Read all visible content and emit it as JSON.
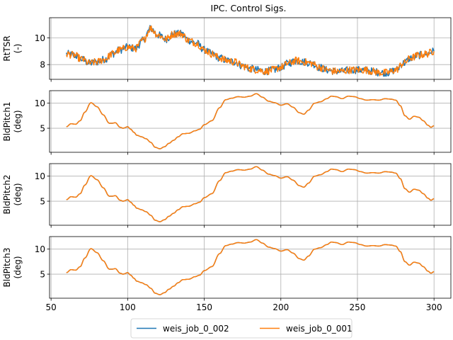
{
  "chart_data": {
    "type": "line",
    "title": "IPC. Control Sigs.",
    "legend": {
      "placement": "bottom-center",
      "entries": [
        {
          "name": "weis_job_0_002",
          "color": "#1f77b4"
        },
        {
          "name": "weis_job_0_001",
          "color": "#ff7f0e"
        }
      ]
    },
    "xlim": [
      49,
      311
    ],
    "xticks": [
      50,
      100,
      150,
      200,
      250,
      300
    ],
    "grid": true,
    "panels": [
      {
        "ylabel": [
          "RtTSR",
          "(-)"
        ],
        "ylim": [
          6.9,
          11.5
        ],
        "yticks": [
          8,
          10
        ],
        "noise": 0.28,
        "series": [
          {
            "name": "weis_job_0_002",
            "color": "#1f77b4"
          },
          {
            "name": "weis_job_0_001",
            "color": "#ff7f0e"
          }
        ],
        "x": [
          60,
          65,
          70,
          75,
          80,
          85,
          90,
          95,
          100,
          105,
          110,
          115,
          120,
          125,
          130,
          135,
          140,
          145,
          150,
          155,
          160,
          165,
          170,
          175,
          180,
          185,
          190,
          195,
          200,
          205,
          210,
          215,
          220,
          225,
          230,
          235,
          240,
          245,
          250,
          255,
          260,
          265,
          270,
          275,
          280,
          285,
          290,
          295,
          300
        ],
        "y": [
          8.8,
          8.7,
          8.4,
          8.1,
          8.2,
          8.4,
          8.8,
          9.1,
          9.3,
          9.2,
          9.8,
          10.7,
          10.2,
          9.9,
          10.3,
          10.3,
          9.8,
          9.6,
          9.1,
          8.8,
          8.5,
          8.3,
          8.2,
          7.9,
          7.7,
          7.6,
          7.5,
          7.6,
          7.8,
          8.1,
          8.3,
          8.2,
          8.1,
          7.8,
          7.6,
          7.5,
          7.5,
          7.6,
          7.6,
          7.6,
          7.5,
          7.4,
          7.4,
          7.6,
          8.1,
          8.5,
          8.7,
          8.8,
          9.0
        ]
      },
      {
        "ylabel": [
          "BldPitch1",
          "(deg)"
        ],
        "ylim": [
          0.2,
          12.5
        ],
        "yticks": [
          5,
          10
        ],
        "noise": 0,
        "series": [
          {
            "name": "weis_job_0_002",
            "color": "#1f77b4"
          },
          {
            "name": "weis_job_0_001",
            "color": "#ff7f0e"
          }
        ],
        "x": [
          60,
          63,
          66,
          69,
          72,
          76,
          80,
          84,
          88,
          90,
          92,
          95,
          97,
          100,
          102,
          104,
          106,
          109,
          112,
          115,
          118,
          121,
          124,
          127,
          130,
          133,
          136,
          140,
          144,
          147,
          150,
          155,
          160,
          164,
          168,
          172,
          176,
          180,
          184,
          188,
          192,
          196,
          200,
          204,
          208,
          212,
          215,
          218,
          222,
          226,
          230,
          233,
          236,
          240,
          244,
          248,
          252,
          256,
          260,
          264,
          268,
          272,
          275,
          278,
          281,
          284,
          287,
          290,
          293,
          296,
          298,
          300
        ],
        "y": [
          5.3,
          5.9,
          5.8,
          6.5,
          8.2,
          10.1,
          9.3,
          7.7,
          6.0,
          6.0,
          6.1,
          5.2,
          5.0,
          5.3,
          4.8,
          4.2,
          3.6,
          3.3,
          2.9,
          2.2,
          1.2,
          0.9,
          1.3,
          2.0,
          2.6,
          3.3,
          3.9,
          4.0,
          4.5,
          4.8,
          5.7,
          6.5,
          9.1,
          10.7,
          11.0,
          11.3,
          11.2,
          11.4,
          11.9,
          11.2,
          10.4,
          10.1,
          9.6,
          9.9,
          9.2,
          8.1,
          7.8,
          8.6,
          10.0,
          10.3,
          10.9,
          11.4,
          11.3,
          10.9,
          11.4,
          11.3,
          10.9,
          10.6,
          10.7,
          10.6,
          10.9,
          10.8,
          10.6,
          9.5,
          7.5,
          6.8,
          7.4,
          7.2,
          6.5,
          5.6,
          5.2,
          5.5
        ]
      },
      {
        "ylabel": [
          "BldPitch2",
          "(deg)"
        ],
        "ylim": [
          0.2,
          12.5
        ],
        "yticks": [
          5,
          10
        ],
        "noise": 0,
        "series": [
          {
            "name": "weis_job_0_002",
            "color": "#1f77b4"
          },
          {
            "name": "weis_job_0_001",
            "color": "#ff7f0e"
          }
        ],
        "x": [
          60,
          63,
          66,
          69,
          72,
          76,
          80,
          84,
          88,
          90,
          92,
          95,
          97,
          100,
          102,
          104,
          106,
          109,
          112,
          115,
          118,
          121,
          124,
          127,
          130,
          133,
          136,
          140,
          144,
          147,
          150,
          155,
          160,
          164,
          168,
          172,
          176,
          180,
          184,
          188,
          192,
          196,
          200,
          204,
          208,
          212,
          215,
          218,
          222,
          226,
          230,
          233,
          236,
          240,
          244,
          248,
          252,
          256,
          260,
          264,
          268,
          272,
          275,
          278,
          281,
          284,
          287,
          290,
          293,
          296,
          298,
          300
        ],
        "y": [
          5.3,
          5.9,
          5.8,
          6.5,
          8.2,
          10.1,
          9.3,
          7.7,
          6.0,
          6.0,
          6.1,
          5.2,
          5.0,
          5.3,
          4.8,
          4.2,
          3.6,
          3.3,
          2.9,
          2.2,
          1.2,
          0.9,
          1.3,
          2.0,
          2.6,
          3.3,
          3.9,
          4.0,
          4.5,
          4.8,
          5.7,
          6.5,
          9.1,
          10.7,
          11.0,
          11.3,
          11.2,
          11.4,
          11.9,
          11.2,
          10.4,
          10.1,
          9.6,
          9.9,
          9.2,
          8.1,
          7.8,
          8.6,
          10.0,
          10.3,
          10.9,
          11.4,
          11.3,
          10.9,
          11.4,
          11.3,
          10.9,
          10.6,
          10.7,
          10.6,
          10.9,
          10.8,
          10.6,
          9.5,
          7.5,
          6.8,
          7.4,
          7.2,
          6.5,
          5.6,
          5.2,
          5.5
        ]
      },
      {
        "ylabel": [
          "BldPitch3",
          "(deg)"
        ],
        "ylim": [
          0.2,
          12.5
        ],
        "yticks": [
          5,
          10
        ],
        "noise": 0,
        "series": [
          {
            "name": "weis_job_0_002",
            "color": "#1f77b4"
          },
          {
            "name": "weis_job_0_001",
            "color": "#ff7f0e"
          }
        ],
        "x": [
          60,
          63,
          66,
          69,
          72,
          76,
          80,
          84,
          88,
          90,
          92,
          95,
          97,
          100,
          102,
          104,
          106,
          109,
          112,
          115,
          118,
          121,
          124,
          127,
          130,
          133,
          136,
          140,
          144,
          147,
          150,
          155,
          160,
          164,
          168,
          172,
          176,
          180,
          184,
          188,
          192,
          196,
          200,
          204,
          208,
          212,
          215,
          218,
          222,
          226,
          230,
          233,
          236,
          240,
          244,
          248,
          252,
          256,
          260,
          264,
          268,
          272,
          275,
          278,
          281,
          284,
          287,
          290,
          293,
          296,
          298,
          300
        ],
        "y": [
          5.3,
          5.9,
          5.8,
          6.5,
          8.2,
          10.1,
          9.3,
          7.7,
          6.0,
          6.0,
          6.1,
          5.2,
          5.0,
          5.3,
          4.8,
          4.2,
          3.6,
          3.3,
          2.9,
          2.2,
          1.2,
          0.9,
          1.3,
          2.0,
          2.6,
          3.3,
          3.9,
          4.0,
          4.5,
          4.8,
          5.7,
          6.5,
          9.1,
          10.7,
          11.0,
          11.3,
          11.2,
          11.4,
          11.9,
          11.2,
          10.4,
          10.1,
          9.6,
          9.9,
          9.2,
          8.1,
          7.8,
          8.6,
          10.0,
          10.3,
          10.9,
          11.4,
          11.3,
          10.9,
          11.4,
          11.3,
          10.9,
          10.6,
          10.7,
          10.6,
          10.9,
          10.8,
          10.6,
          9.5,
          7.5,
          6.8,
          7.4,
          7.2,
          6.5,
          5.6,
          5.2,
          5.5
        ]
      }
    ]
  }
}
